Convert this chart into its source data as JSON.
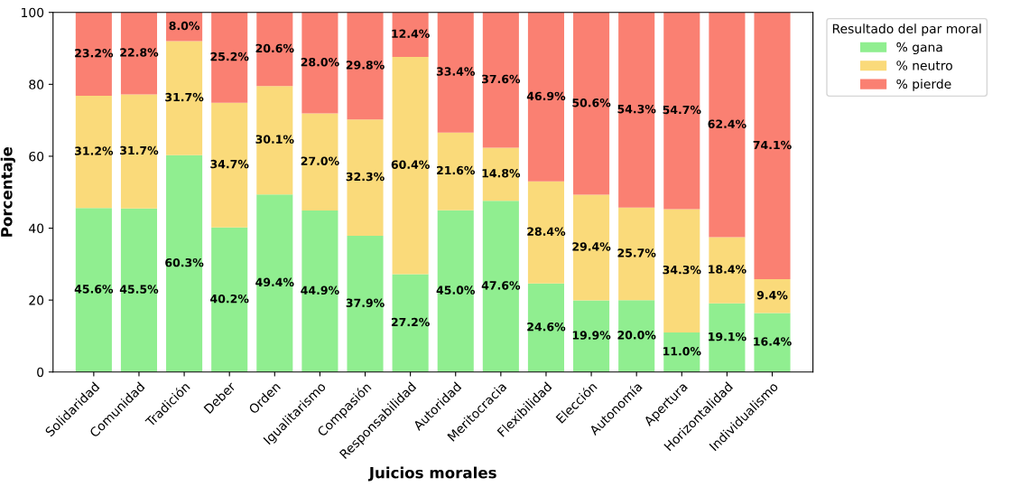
{
  "chart_data": {
    "type": "bar",
    "stacked": true,
    "xlabel": "Juicios morales",
    "ylabel": "Porcentaje",
    "legend_title": "Resultado del par moral",
    "legend": "top right",
    "grid": false,
    "categories": [
      "Solidaridad",
      "Comunidad",
      "Tradición",
      "Deber",
      "Orden",
      "Igualitarismo",
      "Compasión",
      "Responsabilidad",
      "Autoridad",
      "Meritocracia",
      "Flexibilidad",
      "Elección",
      "Autonomía",
      "Apertura",
      "Horizontalidad",
      "Individualismo"
    ],
    "series": [
      {
        "name": "% gana",
        "color": "#90ee90",
        "values": [
          45.6,
          45.5,
          60.3,
          40.2,
          49.4,
          44.9,
          37.9,
          27.2,
          45.0,
          47.6,
          24.6,
          19.9,
          20.0,
          11.0,
          19.1,
          16.4
        ],
        "value_labels": [
          "45.6%",
          "45.5%",
          "60.3%",
          "40.2%",
          "49.4%",
          "44.9%",
          "37.9%",
          "27.2%",
          "45.0%",
          "47.6%",
          "24.6%",
          "19.9%",
          "20.0%",
          "11.0%",
          "19.1%",
          "16.4%"
        ]
      },
      {
        "name": "% neutro",
        "color": "#fada7a",
        "values": [
          31.2,
          31.7,
          31.7,
          34.7,
          30.1,
          27.0,
          32.3,
          60.4,
          21.6,
          14.8,
          28.4,
          29.4,
          25.7,
          34.3,
          18.4,
          9.4
        ],
        "value_labels": [
          "31.2%",
          "31.7%",
          "31.7%",
          "34.7%",
          "30.1%",
          "27.0%",
          "32.3%",
          "60.4%",
          "21.6%",
          "14.8%",
          "28.4%",
          "29.4%",
          "25.7%",
          "34.3%",
          "18.4%",
          "9.4%"
        ]
      },
      {
        "name": "% pierde",
        "color": "#fa8072",
        "values": [
          23.2,
          22.8,
          8.0,
          25.2,
          20.6,
          28.0,
          29.8,
          12.4,
          33.4,
          37.6,
          46.9,
          50.6,
          54.3,
          54.7,
          62.4,
          74.1
        ],
        "value_labels": [
          "23.2%",
          "22.8%",
          "8.0%",
          "25.2%",
          "20.6%",
          "28.0%",
          "29.8%",
          "12.4%",
          "33.4%",
          "37.6%",
          "46.9%",
          "50.6%",
          "54.3%",
          "54.7%",
          "62.4%",
          "74.1%"
        ]
      }
    ],
    "ylim": [
      0,
      100
    ],
    "yticks": [
      0,
      20,
      40,
      60,
      80,
      100
    ]
  }
}
